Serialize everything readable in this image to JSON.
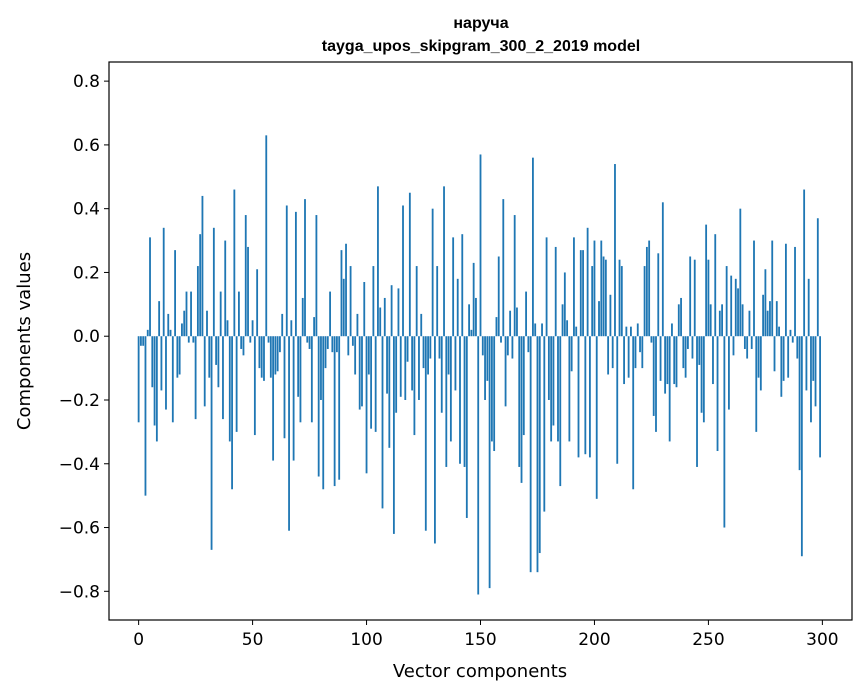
{
  "chart_data": {
    "type": "bar",
    "title": "наруча",
    "subtitle": "tayga_upos_skipgram_300_2_2019 model",
    "xlabel": "Vector components",
    "ylabel": "Components values",
    "xlim": [
      -13,
      313
    ],
    "ylim": [
      -0.89,
      0.86
    ],
    "xticks": [
      0,
      50,
      100,
      150,
      200,
      250,
      300
    ],
    "xtick_labels": [
      "0",
      "50",
      "100",
      "150",
      "200",
      "250",
      "300"
    ],
    "yticks": [
      -0.8,
      -0.6,
      -0.4,
      -0.2,
      0.0,
      0.2,
      0.4,
      0.6,
      0.8
    ],
    "ytick_labels": [
      "−0.8",
      "−0.6",
      "−0.4",
      "−0.2",
      "0.0",
      "0.2",
      "0.4",
      "0.6",
      "0.8"
    ],
    "bar_color": "#1f77b4",
    "values": [
      -0.27,
      -0.03,
      -0.03,
      -0.5,
      0.02,
      0.31,
      -0.16,
      -0.28,
      -0.33,
      0.11,
      -0.17,
      0.34,
      -0.23,
      0.07,
      0.02,
      -0.27,
      0.27,
      -0.13,
      -0.12,
      0.04,
      0.08,
      0.14,
      -0.02,
      0.14,
      -0.02,
      -0.26,
      0.22,
      0.32,
      0.44,
      -0.22,
      0.08,
      -0.13,
      -0.67,
      0.34,
      -0.09,
      -0.16,
      0.14,
      -0.26,
      0.3,
      0.05,
      -0.33,
      -0.48,
      0.46,
      -0.3,
      0.14,
      -0.04,
      -0.06,
      0.38,
      0.28,
      -0.02,
      0.05,
      -0.31,
      0.21,
      -0.1,
      -0.13,
      -0.14,
      0.63,
      -0.02,
      -0.13,
      -0.39,
      -0.12,
      -0.11,
      -0.05,
      0.07,
      -0.32,
      0.41,
      -0.61,
      0.05,
      -0.39,
      0.39,
      -0.19,
      -0.27,
      0.12,
      0.43,
      -0.02,
      -0.04,
      -0.27,
      0.06,
      0.38,
      -0.44,
      -0.2,
      -0.48,
      -0.1,
      -0.04,
      0.14,
      -0.05,
      -0.47,
      -0.05,
      -0.45,
      0.27,
      0.18,
      0.29,
      -0.06,
      0.22,
      -0.03,
      -0.12,
      0.07,
      -0.23,
      -0.22,
      0.17,
      -0.43,
      -0.12,
      -0.29,
      0.22,
      -0.3,
      0.47,
      0.09,
      -0.54,
      0.12,
      -0.18,
      -0.35,
      0.16,
      -0.62,
      -0.24,
      0.15,
      -0.19,
      0.41,
      -0.2,
      -0.08,
      0.45,
      -0.17,
      -0.31,
      0.22,
      -0.2,
      0.07,
      -0.1,
      -0.61,
      -0.12,
      -0.07,
      0.4,
      -0.65,
      0.22,
      -0.07,
      -0.24,
      0.47,
      -0.41,
      -0.12,
      -0.33,
      0.31,
      -0.17,
      0.18,
      -0.4,
      0.32,
      -0.41,
      -0.57,
      0.1,
      0.02,
      0.23,
      0.12,
      -0.81,
      0.57,
      -0.06,
      -0.2,
      -0.14,
      -0.79,
      -0.33,
      -0.36,
      0.06,
      0.25,
      -0.02,
      0.43,
      -0.22,
      -0.06,
      0.08,
      -0.07,
      0.38,
      0.09,
      -0.41,
      -0.46,
      -0.31,
      0.14,
      -0.05,
      -0.74,
      0.56,
      0.04,
      -0.74,
      -0.68,
      0.04,
      -0.55,
      0.31,
      -0.2,
      -0.33,
      -0.28,
      0.28,
      -0.33,
      -0.47,
      0.1,
      0.2,
      0.05,
      -0.33,
      -0.11,
      0.31,
      0.03,
      -0.38,
      0.27,
      0.27,
      -0.37,
      0.34,
      -0.38,
      0.22,
      0.3,
      -0.51,
      0.11,
      0.3,
      0.25,
      0.24,
      -0.12,
      0.13,
      -0.1,
      0.54,
      -0.4,
      0.24,
      0.22,
      -0.15,
      0.03,
      -0.13,
      0.03,
      -0.48,
      -0.1,
      0.04,
      -0.05,
      -0.1,
      0.22,
      0.28,
      0.3,
      -0.02,
      -0.25,
      -0.3,
      0.26,
      -0.14,
      0.42,
      -0.18,
      -0.15,
      -0.33,
      0.04,
      -0.15,
      -0.16,
      0.1,
      0.12,
      -0.1,
      -0.13,
      -0.04,
      0.25,
      -0.07,
      0.24,
      -0.41,
      -0.09,
      -0.24,
      -0.27,
      0.35,
      0.24,
      0.1,
      -0.15,
      0.32,
      -0.36,
      0.08,
      0.1,
      -0.6,
      0.22,
      -0.23,
      0.19,
      -0.06,
      0.18,
      0.15,
      0.4,
      0.1,
      -0.04,
      -0.07,
      0.08,
      -0.04,
      0.3,
      -0.3,
      -0.13,
      -0.17,
      0.13,
      0.21,
      0.08,
      0.11,
      0.3,
      -0.11,
      0.11,
      0.03,
      -0.19,
      -0.14,
      0.29,
      -0.13,
      0.02,
      -0.02,
      0.28,
      -0.07,
      -0.42,
      -0.69,
      0.46,
      -0.17,
      0.18,
      -0.27,
      -0.14,
      -0.22,
      0.37,
      -0.38
    ]
  }
}
